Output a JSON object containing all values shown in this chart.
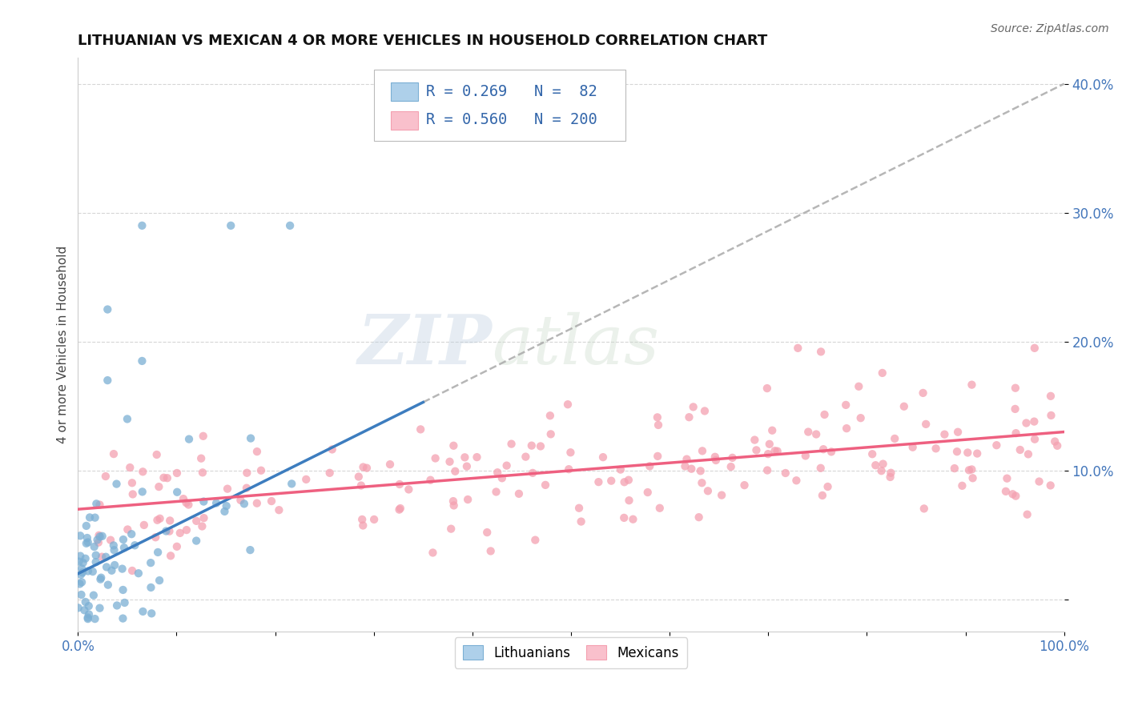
{
  "title": "LITHUANIAN VS MEXICAN 4 OR MORE VEHICLES IN HOUSEHOLD CORRELATION CHART",
  "source_text": "Source: ZipAtlas.com",
  "ylabel": "4 or more Vehicles in Household",
  "xlim": [
    0.0,
    1.0
  ],
  "ylim": [
    -0.025,
    0.42
  ],
  "xticks": [
    0.0,
    0.1,
    0.2,
    0.3,
    0.4,
    0.5,
    0.6,
    0.7,
    0.8,
    0.9,
    1.0
  ],
  "xticklabels": [
    "0.0%",
    "",
    "",
    "",
    "",
    "",
    "",
    "",
    "",
    "",
    "100.0%"
  ],
  "yticks": [
    0.0,
    0.1,
    0.2,
    0.3,
    0.4
  ],
  "yticklabels": [
    "",
    "10.0%",
    "20.0%",
    "30.0%",
    "40.0%"
  ],
  "watermark_zip": "ZIP",
  "watermark_atlas": "atlas",
  "blue_color": "#7BAFD4",
  "pink_color": "#F4A0B0",
  "blue_fill": "#AED0EA",
  "pink_fill": "#F9C0CC",
  "line_blue": "#3D7DBF",
  "line_pink": "#EE6080",
  "title_fontsize": 13,
  "seed": 42,
  "n_blue": 82,
  "n_pink": 200,
  "blue_intercept": 0.02,
  "blue_slope": 0.38,
  "pink_intercept": 0.07,
  "pink_slope": 0.06,
  "legend_text1": "R = 0.269   N =  82",
  "legend_text2": "R = 0.560   N = 200"
}
